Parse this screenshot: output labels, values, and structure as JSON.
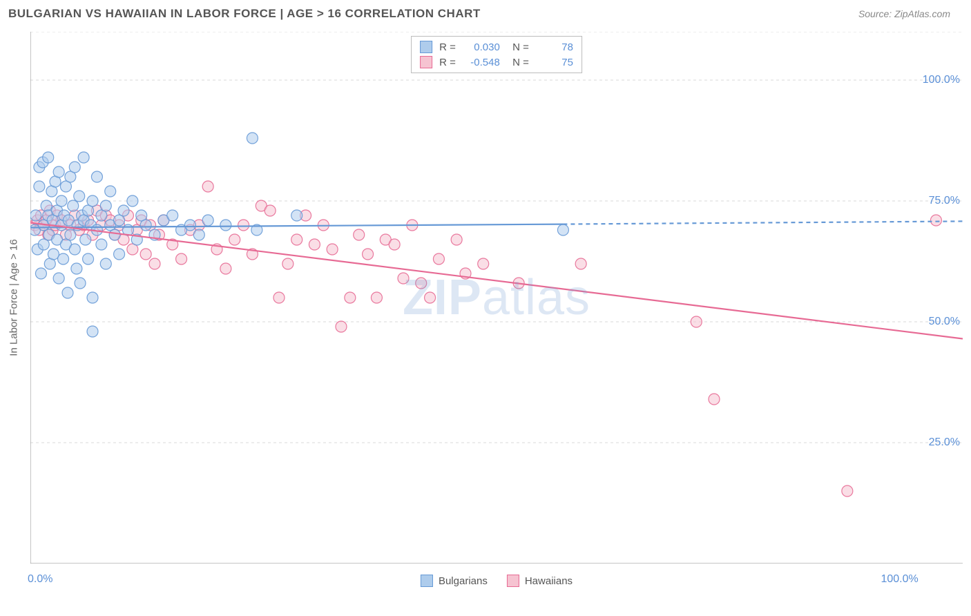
{
  "header": {
    "title": "BULGARIAN VS HAWAIIAN IN LABOR FORCE | AGE > 16 CORRELATION CHART",
    "source": "Source: ZipAtlas.com"
  },
  "chart": {
    "type": "scatter",
    "ylabel": "In Labor Force | Age > 16",
    "xlim": [
      0,
      105
    ],
    "ylim": [
      0,
      110
    ],
    "xticks": [
      0,
      12.5,
      25,
      37.5,
      50,
      62.5,
      75,
      87.5,
      100
    ],
    "xtick_labels": {
      "0": "0.0%",
      "100": "100.0%"
    },
    "yticks": [
      25,
      50,
      75,
      100
    ],
    "ytick_labels": {
      "25": "25.0%",
      "50": "50.0%",
      "75": "75.0%",
      "100": "100.0%"
    },
    "grid_color": "#d8d8d8",
    "axis_color": "#888888",
    "background_color": "#ffffff",
    "marker_radius": 8,
    "marker_opacity": 0.55,
    "trend_width": 2.2,
    "watermark": "ZIPatlas",
    "series": {
      "bulgarians": {
        "label": "Bulgarians",
        "fill": "#aeccec",
        "stroke": "#6699d6",
        "r_value": "0.030",
        "n_value": "78",
        "trend": {
          "x1": 0,
          "y1": 69.5,
          "x2": 60,
          "y2": 70.2,
          "x2_dash": 105,
          "y2_dash": 70.8
        },
        "points": [
          [
            0.5,
            69
          ],
          [
            0.6,
            72
          ],
          [
            0.8,
            65
          ],
          [
            1.0,
            78
          ],
          [
            1.0,
            82
          ],
          [
            1.2,
            60
          ],
          [
            1.4,
            83
          ],
          [
            1.5,
            70
          ],
          [
            1.5,
            66
          ],
          [
            1.8,
            74
          ],
          [
            2.0,
            84
          ],
          [
            2.0,
            72
          ],
          [
            2.1,
            68
          ],
          [
            2.2,
            62
          ],
          [
            2.4,
            77
          ],
          [
            2.5,
            71
          ],
          [
            2.6,
            64
          ],
          [
            2.8,
            79
          ],
          [
            3.0,
            73
          ],
          [
            3.0,
            67
          ],
          [
            3.2,
            81
          ],
          [
            3.2,
            59
          ],
          [
            3.5,
            75
          ],
          [
            3.5,
            70
          ],
          [
            3.7,
            63
          ],
          [
            3.8,
            72
          ],
          [
            4.0,
            66
          ],
          [
            4.0,
            78
          ],
          [
            4.2,
            56
          ],
          [
            4.3,
            71
          ],
          [
            4.5,
            80
          ],
          [
            4.5,
            68
          ],
          [
            4.8,
            74
          ],
          [
            5.0,
            82
          ],
          [
            5.0,
            65
          ],
          [
            5.2,
            61
          ],
          [
            5.3,
            70
          ],
          [
            5.5,
            76
          ],
          [
            5.6,
            58
          ],
          [
            5.8,
            72
          ],
          [
            6.0,
            71
          ],
          [
            6.0,
            84
          ],
          [
            6.2,
            67
          ],
          [
            6.5,
            73
          ],
          [
            6.5,
            63
          ],
          [
            6.8,
            70
          ],
          [
            7.0,
            55
          ],
          [
            7.0,
            75
          ],
          [
            7.0,
            48
          ],
          [
            7.5,
            69
          ],
          [
            7.5,
            80
          ],
          [
            8.0,
            72
          ],
          [
            8.0,
            66
          ],
          [
            8.5,
            62
          ],
          [
            8.5,
            74
          ],
          [
            9.0,
            70
          ],
          [
            9.0,
            77
          ],
          [
            9.5,
            68
          ],
          [
            10.0,
            71
          ],
          [
            10.0,
            64
          ],
          [
            10.5,
            73
          ],
          [
            11.0,
            69
          ],
          [
            11.5,
            75
          ],
          [
            12.0,
            67
          ],
          [
            12.5,
            72
          ],
          [
            13.0,
            70
          ],
          [
            14.0,
            68
          ],
          [
            15.0,
            71
          ],
          [
            16.0,
            72
          ],
          [
            17.0,
            69
          ],
          [
            18.0,
            70
          ],
          [
            19.0,
            68
          ],
          [
            20.0,
            71
          ],
          [
            22.0,
            70
          ],
          [
            25.0,
            88
          ],
          [
            25.5,
            69
          ],
          [
            30.0,
            72
          ],
          [
            60.0,
            69
          ]
        ]
      },
      "hawaiians": {
        "label": "Hawaiians",
        "fill": "#f6c3d1",
        "stroke": "#e76a94",
        "r_value": "-0.548",
        "n_value": "75",
        "trend": {
          "x1": 0,
          "y1": 70.5,
          "x2": 105,
          "y2": 46.5,
          "x2_dash": 105,
          "y2_dash": 46.5
        },
        "points": [
          [
            0.5,
            70
          ],
          [
            0.8,
            71
          ],
          [
            1.0,
            69
          ],
          [
            1.2,
            72
          ],
          [
            1.5,
            70
          ],
          [
            1.8,
            71
          ],
          [
            2.0,
            68
          ],
          [
            2.2,
            73
          ],
          [
            2.5,
            69
          ],
          [
            2.8,
            70
          ],
          [
            3.0,
            72
          ],
          [
            3.5,
            71
          ],
          [
            4.0,
            68
          ],
          [
            4.5,
            70
          ],
          [
            5.0,
            72
          ],
          [
            5.5,
            69
          ],
          [
            6.0,
            70
          ],
          [
            6.5,
            71
          ],
          [
            7.0,
            68
          ],
          [
            7.5,
            73
          ],
          [
            8.0,
            70
          ],
          [
            8.5,
            72
          ],
          [
            9.0,
            71
          ],
          [
            9.5,
            68
          ],
          [
            10.0,
            70
          ],
          [
            10.5,
            67
          ],
          [
            11.0,
            72
          ],
          [
            11.5,
            65
          ],
          [
            12.0,
            69
          ],
          [
            12.5,
            71
          ],
          [
            13.0,
            64
          ],
          [
            13.5,
            70
          ],
          [
            14.0,
            62
          ],
          [
            14.5,
            68
          ],
          [
            15.0,
            71
          ],
          [
            16.0,
            66
          ],
          [
            17.0,
            63
          ],
          [
            18.0,
            69
          ],
          [
            19.0,
            70
          ],
          [
            20.0,
            78
          ],
          [
            21.0,
            65
          ],
          [
            22.0,
            61
          ],
          [
            23.0,
            67
          ],
          [
            24.0,
            70
          ],
          [
            25.0,
            64
          ],
          [
            26.0,
            74
          ],
          [
            27.0,
            73
          ],
          [
            28.0,
            55
          ],
          [
            29.0,
            62
          ],
          [
            30.0,
            67
          ],
          [
            31.0,
            72
          ],
          [
            32.0,
            66
          ],
          [
            33.0,
            70
          ],
          [
            34.0,
            65
          ],
          [
            35.0,
            49
          ],
          [
            36.0,
            55
          ],
          [
            37.0,
            68
          ],
          [
            38.0,
            64
          ],
          [
            39.0,
            55
          ],
          [
            40.0,
            67
          ],
          [
            41.0,
            66
          ],
          [
            42.0,
            59
          ],
          [
            43.0,
            70
          ],
          [
            44.0,
            58
          ],
          [
            45.0,
            55
          ],
          [
            46.0,
            63
          ],
          [
            48.0,
            67
          ],
          [
            49.0,
            60
          ],
          [
            51.0,
            62
          ],
          [
            55.0,
            58
          ],
          [
            62.0,
            62
          ],
          [
            75.0,
            50
          ],
          [
            77.0,
            34
          ],
          [
            92.0,
            15
          ],
          [
            102.0,
            71
          ]
        ]
      }
    }
  }
}
